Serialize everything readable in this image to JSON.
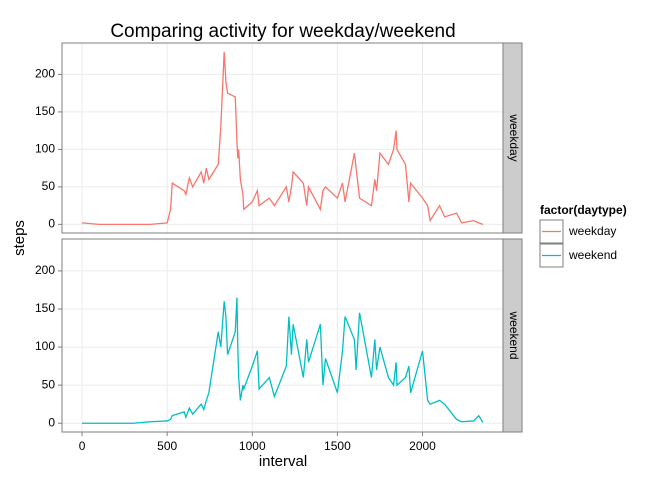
{
  "chart_data": {
    "type": "line",
    "title": "Comparing activity for weekday/weekend",
    "x_label": "interval",
    "y_label": "steps",
    "legend_title": "factor(daytype)",
    "legend_position": "right",
    "facet_by": "series",
    "grid": true,
    "x": [
      0,
      100,
      200,
      300,
      400,
      500,
      520,
      530,
      600,
      610,
      630,
      650,
      700,
      715,
      730,
      745,
      800,
      815,
      825,
      835,
      845,
      855,
      900,
      910,
      915,
      920,
      930,
      945,
      950,
      1000,
      1030,
      1040,
      1100,
      1130,
      1200,
      1215,
      1230,
      1240,
      1300,
      1320,
      1330,
      1400,
      1415,
      1430,
      1500,
      1530,
      1545,
      1600,
      1610,
      1630,
      1700,
      1720,
      1730,
      1750,
      1800,
      1830,
      1845,
      1850,
      1900,
      1920,
      1930,
      2000,
      2030,
      2045,
      2100,
      2130,
      2200,
      2230,
      2300,
      2330,
      2355
    ],
    "series": [
      {
        "name": "weekday",
        "color": "#F8766D",
        "values": [
          2,
          0,
          0,
          0,
          0,
          2,
          20,
          55,
          45,
          40,
          62,
          50,
          70,
          55,
          75,
          60,
          80,
          130,
          180,
          230,
          190,
          175,
          170,
          110,
          88,
          100,
          60,
          40,
          20,
          30,
          45,
          25,
          35,
          25,
          50,
          30,
          50,
          70,
          55,
          25,
          50,
          20,
          45,
          50,
          35,
          55,
          30,
          95,
          75,
          35,
          25,
          60,
          45,
          95,
          80,
          100,
          125,
          100,
          80,
          30,
          55,
          35,
          25,
          5,
          25,
          10,
          15,
          2,
          5,
          2,
          0
        ]
      },
      {
        "name": "weekend",
        "color": "#00BFC4",
        "values": [
          0,
          0,
          0,
          0,
          2,
          3,
          5,
          10,
          15,
          8,
          20,
          12,
          25,
          18,
          30,
          40,
          120,
          100,
          130,
          160,
          140,
          90,
          120,
          165,
          100,
          60,
          30,
          50,
          45,
          75,
          95,
          45,
          60,
          35,
          75,
          140,
          90,
          130,
          60,
          110,
          80,
          130,
          50,
          85,
          40,
          95,
          140,
          110,
          70,
          145,
          60,
          110,
          70,
          100,
          60,
          50,
          80,
          50,
          60,
          75,
          40,
          95,
          30,
          25,
          30,
          25,
          5,
          2,
          3,
          10,
          1
        ]
      }
    ],
    "xlim": [
      -117.75,
      2472.75
    ],
    "xticks": [
      0,
      500,
      1000,
      1500,
      2000
    ],
    "ylim": [
      -11.5,
      241.9
    ],
    "yticks": [
      0,
      50,
      100,
      150,
      200
    ]
  }
}
